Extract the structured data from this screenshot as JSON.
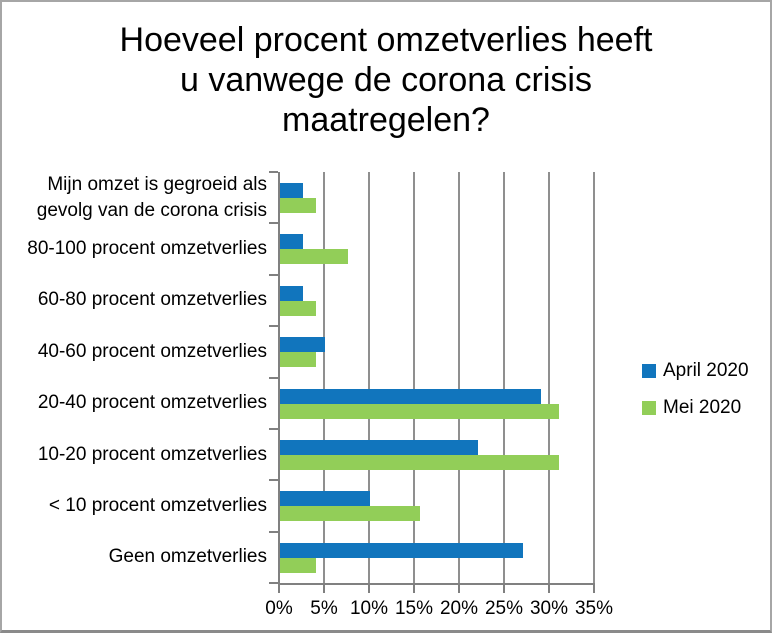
{
  "title_lines": [
    "Hoeveel procent omzetverlies heeft",
    "u vanwege de corona crisis",
    "maatregelen?"
  ],
  "chart_data": {
    "type": "bar",
    "orientation": "horizontal",
    "title": "Hoeveel procent omzetverlies heeft u vanwege de corona crisis maatregelen?",
    "categories": [
      "Mijn omzet is gegroeid als gevolg van de corona crisis",
      "80-100 procent omzetverlies",
      "60-80 procent omzetverlies",
      "40-60 procent omzetverlies",
      "20-40 procent omzetverlies",
      "10-20 procent omzetverlies",
      "< 10 procent omzetverlies",
      "Geen omzetverlies"
    ],
    "series": [
      {
        "name": "April 2020",
        "color": "#1175BD",
        "values": [
          2.5,
          2.5,
          2.5,
          5,
          29,
          22,
          10,
          27
        ]
      },
      {
        "name": "Mei 2020",
        "color": "#92CE58",
        "values": [
          4,
          7.5,
          4,
          4,
          31,
          31,
          15.5,
          4
        ]
      }
    ],
    "xlabel": "",
    "ylabel": "",
    "xlim": [
      0,
      35
    ],
    "x_tick_step": 5,
    "x_tick_labels": [
      "0%",
      "5%",
      "10%",
      "15%",
      "20%",
      "25%",
      "30%",
      "35%"
    ],
    "grid": true,
    "gridline_color": "#8f8f8f",
    "axis_color": "#808080",
    "legend_position": "right"
  }
}
